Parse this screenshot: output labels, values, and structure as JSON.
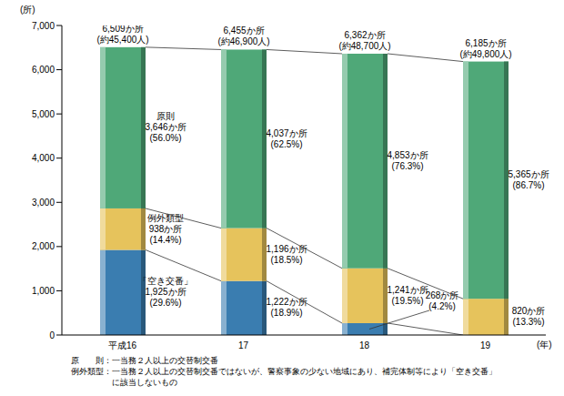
{
  "chart_data": {
    "type": "bar",
    "stacked": true,
    "grid": false,
    "data_labels": true,
    "categories": [
      "平成16",
      "17",
      "18",
      "19"
    ],
    "x_label": "(年)",
    "y_label": "(所)",
    "ylim": [
      0,
      7000
    ],
    "yticks": [
      0,
      {
        "value": 1000,
        "label": "1,000"
      },
      {
        "value": 2000,
        "label": "2,000"
      },
      {
        "value": 3000,
        "label": "3,000"
      },
      {
        "value": 4000,
        "label": "4,000"
      },
      {
        "value": 5000,
        "label": "5,000"
      },
      {
        "value": 6000,
        "label": "6,000"
      },
      {
        "value": 7000,
        "label": "7,000"
      }
    ],
    "series": [
      {
        "name": "「空き交番」",
        "color": "#3a7db0",
        "values": [
          1925,
          1222,
          268,
          0
        ],
        "value_labels": [
          "1,925か所\n(29.6%)",
          "1,222か所\n(18.9%)",
          "268か所\n(4.2%)",
          null
        ]
      },
      {
        "name": "例外類型",
        "color": "#e6c35c",
        "values": [
          938,
          1196,
          1241,
          820
        ],
        "value_labels": [
          "938か所\n(14.4%)",
          "1,196か所\n(18.5%)",
          "1,241か所\n(19.5%)",
          "820か所\n(13.3%)"
        ]
      },
      {
        "name": "原則",
        "color": "#4fa878",
        "values": [
          3646,
          4037,
          4853,
          5365
        ],
        "value_labels": [
          "3,646か所\n(56.0%)",
          "4,037か所\n(62.5%)",
          "4,853か所\n(76.3%)",
          "5,365か所\n(86.7%)"
        ]
      }
    ],
    "total_labels": [
      "6,509か所\n(約45,400人)",
      "6,455か所\n(約46,900人)",
      "6,362か所\n(約48,700人)",
      "6,185か所\n(約49,800人)"
    ],
    "notes": [
      "原　　則：一当務２人以上の交替制交番",
      "例外類型：一当務２人以上の交替制交番ではないが、警察事象の少ない地域にあり、補完体制等により「空き交番」",
      "に該当しないもの"
    ]
  }
}
